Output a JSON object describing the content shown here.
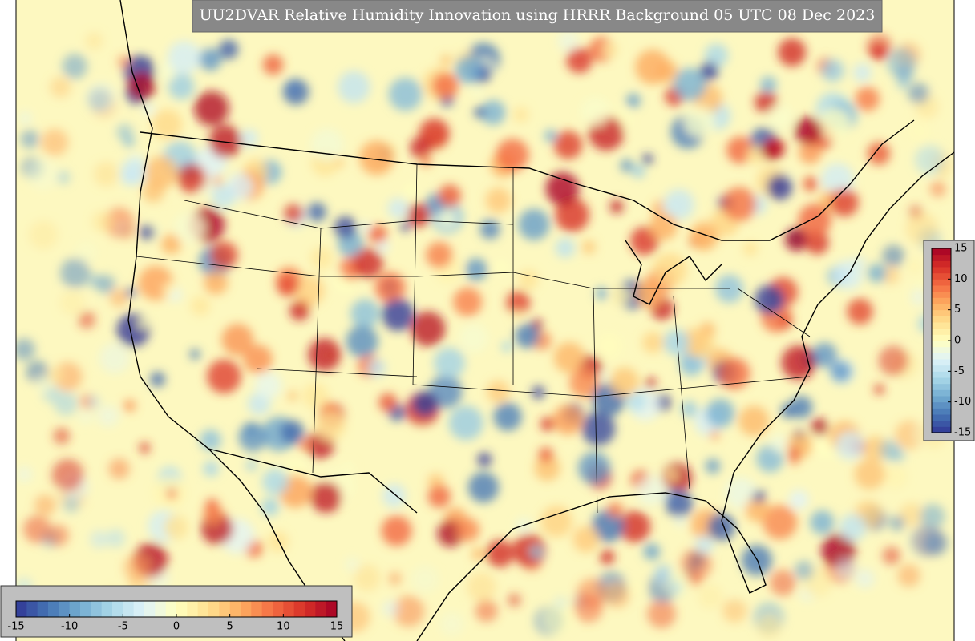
{
  "title": "UU2DVAR Relative Humidity Innovation using HRRR Background 05 UTC 08 Dec 2023",
  "colorbar": {
    "range": [
      -15,
      15
    ],
    "ticks": [
      -15,
      -10,
      -5,
      0,
      5,
      10,
      15
    ],
    "colors": [
      "#313695",
      "#4575b4",
      "#74add1",
      "#abd9e9",
      "#e0f3f8",
      "#ffffbf",
      "#fee090",
      "#fdae61",
      "#f46d43",
      "#d73027",
      "#a50026"
    ]
  }
}
